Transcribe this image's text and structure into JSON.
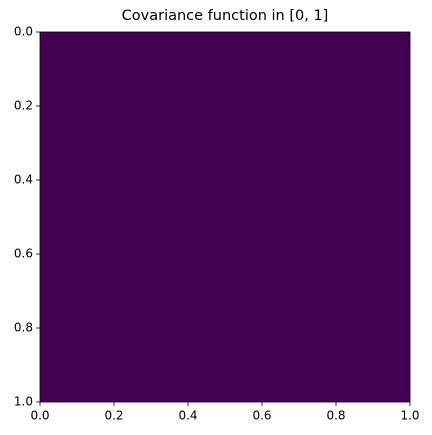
{
  "chart_data": {
    "type": "heatmap",
    "title": "Covariance function in [0, 1]",
    "color": "#440154",
    "xlim": [
      0,
      1
    ],
    "xticks": [
      {
        "value": 0,
        "label": "0.0"
      },
      {
        "value": 0.2,
        "label": "0.2"
      },
      {
        "value": 0.4,
        "label": "0.4"
      },
      {
        "value": 0.6,
        "label": "0.6"
      },
      {
        "value": 0.8,
        "label": "0.8"
      },
      {
        "value": 1,
        "label": "1.0"
      }
    ],
    "ylim": [
      1,
      0
    ],
    "yticks": [
      {
        "value": 0,
        "label": "0.0"
      },
      {
        "value": 0.2,
        "label": "0.2"
      },
      {
        "value": 0.4,
        "label": "0.4"
      },
      {
        "value": 0.6,
        "label": "0.6"
      },
      {
        "value": 0.8,
        "label": "0.8"
      },
      {
        "value": 1,
        "label": "1.0"
      }
    ]
  }
}
